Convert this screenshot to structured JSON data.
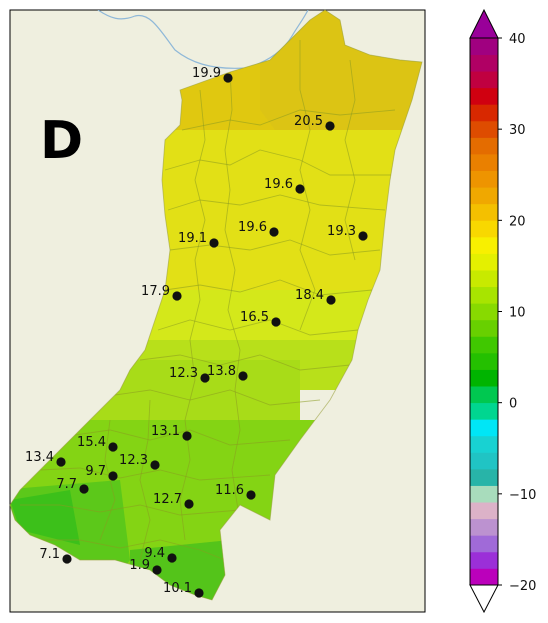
{
  "panel_label": "D",
  "map": {
    "background_color": "#efefdf",
    "river_color": "#8fb8d8"
  },
  "stations": [
    {
      "value": "19.9"
    },
    {
      "value": "20.5"
    },
    {
      "value": "19.6"
    },
    {
      "value": "19.1"
    },
    {
      "value": "19.6"
    },
    {
      "value": "19.3"
    },
    {
      "value": "17.9"
    },
    {
      "value": "18.4"
    },
    {
      "value": "16.5"
    },
    {
      "value": "12.3"
    },
    {
      "value": "13.8"
    },
    {
      "value": "13.1"
    },
    {
      "value": "15.4"
    },
    {
      "value": "13.4"
    },
    {
      "value": "9.7"
    },
    {
      "value": "12.3"
    },
    {
      "value": "7.7"
    },
    {
      "value": "12.7"
    },
    {
      "value": "11.6"
    },
    {
      "value": "9.4"
    },
    {
      "value": "7.1"
    },
    {
      "value": "1.9"
    },
    {
      "value": "10.1"
    }
  ],
  "colorbar": {
    "min": -20,
    "max": 40,
    "ticks": [
      {
        "value": 40,
        "label": "40"
      },
      {
        "value": 30,
        "label": "30"
      },
      {
        "value": 20,
        "label": "20"
      },
      {
        "value": 10,
        "label": "10"
      },
      {
        "value": 0,
        "label": "0"
      },
      {
        "value": -10,
        "label": "−10"
      },
      {
        "value": -20,
        "label": "−20"
      }
    ],
    "over_color": "#990099",
    "under_color": "#ffffff",
    "colors": [
      "#bb00bb",
      "#9b2fd8",
      "#a06ad8",
      "#bc92d0",
      "#dcb2c8",
      "#a8dcbc",
      "#28b4a8",
      "#20c4c4",
      "#18d2d2",
      "#00e6f6",
      "#00d690",
      "#00c850",
      "#00b400",
      "#24c000",
      "#40c800",
      "#68d000",
      "#88da00",
      "#a8e400",
      "#c8ea00",
      "#e4f000",
      "#f8f000",
      "#f8d800",
      "#f4c000",
      "#f0a800",
      "#ee9400",
      "#ea8000",
      "#e46c00",
      "#de4c00",
      "#d82800",
      "#d00010",
      "#c00040",
      "#b00064",
      "#a00080"
    ]
  }
}
